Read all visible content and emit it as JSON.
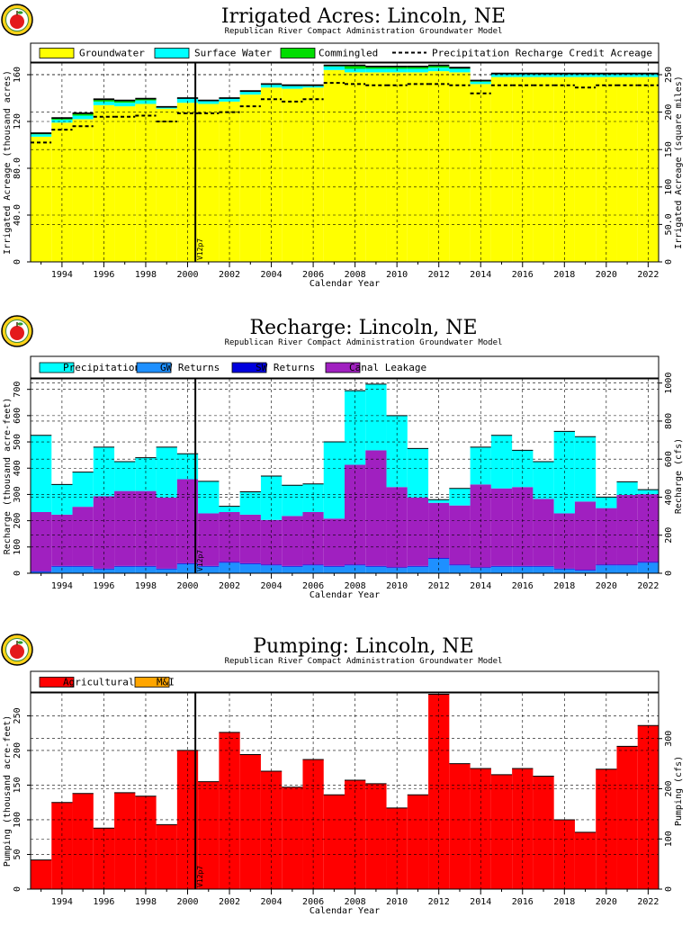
{
  "years": [
    1993,
    1994,
    1995,
    1996,
    1997,
    1998,
    1999,
    2000,
    2001,
    2002,
    2003,
    2004,
    2005,
    2006,
    2007,
    2008,
    2009,
    2010,
    2011,
    2012,
    2013,
    2014,
    2015,
    2016,
    2017,
    2018,
    2019,
    2020,
    2021,
    2022
  ],
  "x_tick_labels": [
    "1994",
    "1996",
    "1998",
    "2000",
    "2002",
    "2004",
    "2006",
    "2008",
    "2010",
    "2012",
    "2014",
    "2016",
    "2018",
    "2020",
    "2022"
  ],
  "vline_label": "V12p7",
  "vline_year": 2001,
  "colors": {
    "groundwater": "#ffff00",
    "surface_water": "#00ffff",
    "commingled": "#00dd00",
    "gw_returns": "#1e90ff",
    "sw_returns": "#0000dd",
    "canal_leakage": "#a020c0",
    "agricultural": "#ff0000",
    "mi": "#ffa500"
  },
  "chart_data": [
    {
      "type": "area",
      "title": "Irrigated Acres: Lincoln, NE",
      "subtitle": "Republican River Compact Administration Groundwater Model",
      "xlabel": "Calendar Year",
      "ylabel": "Irrigated Acreage (thousand acres)",
      "ylabel_right": "Irrigated Acreage (square miles)",
      "ylim": [
        0,
        170
      ],
      "ylim_right": [
        0,
        265.6
      ],
      "yticks": [
        "0",
        "40.0",
        "80.0",
        "120",
        "160"
      ],
      "yticks_right": [
        "0",
        "50.0",
        "100",
        "150",
        "200",
        "250"
      ],
      "legend": [
        "Groundwater",
        "Surface Water",
        "Commingled",
        "Precipitation Recharge Credit Acreage"
      ],
      "series": [
        {
          "name": "Groundwater",
          "values": [
            107,
            119,
            122,
            134,
            133,
            135,
            131,
            136,
            135,
            137,
            143,
            149,
            148,
            149,
            164,
            162,
            162,
            162,
            162,
            163,
            162,
            152,
            158,
            158,
            158,
            158,
            158,
            158,
            158,
            158
          ]
        },
        {
          "name": "Surface Water",
          "values": [
            2,
            2.5,
            3,
            3,
            3,
            3,
            1.5,
            4,
            3,
            3,
            3,
            3,
            3,
            2,
            3,
            3,
            3,
            3,
            3,
            3,
            3,
            2,
            3,
            3,
            3,
            3,
            3,
            3,
            3,
            3
          ]
        },
        {
          "name": "Commingled",
          "values": [
            1,
            1.5,
            2,
            2,
            2,
            1.5,
            0,
            0,
            0,
            0,
            0,
            0,
            0,
            0,
            1,
            3,
            2,
            2,
            2,
            2,
            1,
            1,
            0,
            0,
            0,
            0,
            0,
            0,
            0,
            0
          ]
        },
        {
          "name": "Precipitation Recharge Credit Acreage",
          "values": [
            102,
            113,
            116,
            124,
            124,
            125,
            120,
            127,
            127,
            128,
            133,
            139,
            137,
            139,
            153,
            152,
            151,
            151,
            152,
            152,
            151,
            144,
            151,
            151,
            151,
            151,
            149,
            151,
            151,
            151
          ]
        }
      ]
    },
    {
      "type": "area",
      "title": "Recharge: Lincoln, NE",
      "subtitle": "Republican River Compact Administration Groundwater Model",
      "xlabel": "Calendar Year",
      "ylabel": "Recharge (thousand acre-feet)",
      "ylabel_right": "Recharge (cfs)",
      "ylim": [
        0,
        740
      ],
      "ylim_right": [
        0,
        1022
      ],
      "yticks": [
        "0",
        "100",
        "200",
        "300",
        "400",
        "500",
        "600",
        "700"
      ],
      "yticks_right": [
        "0",
        "200",
        "400",
        "600",
        "800",
        "1000"
      ],
      "legend": [
        "Precipitation",
        "GW Returns",
        "SW Returns",
        "Canal Leakage"
      ],
      "series": [
        {
          "name": "GW Returns",
          "values": [
            5,
            25,
            25,
            15,
            25,
            25,
            15,
            35,
            25,
            40,
            35,
            30,
            25,
            30,
            25,
            30,
            25,
            20,
            25,
            55,
            30,
            20,
            25,
            25,
            25,
            15,
            10,
            30,
            30,
            40
          ]
        },
        {
          "name": "SW Returns",
          "values": [
            3,
            3,
            3,
            3,
            3,
            3,
            3,
            3,
            3,
            3,
            3,
            3,
            3,
            3,
            3,
            3,
            3,
            3,
            3,
            3,
            3,
            3,
            3,
            3,
            3,
            3,
            3,
            3,
            3,
            3
          ]
        },
        {
          "name": "Canal Leakage",
          "values": [
            225,
            195,
            225,
            275,
            285,
            285,
            270,
            320,
            200,
            190,
            185,
            170,
            190,
            200,
            180,
            380,
            440,
            305,
            260,
            210,
            225,
            315,
            295,
            300,
            255,
            210,
            260,
            215,
            265,
            258
          ]
        },
        {
          "name": "Precipitation",
          "values": [
            292,
            115,
            132,
            187,
            112,
            127,
            192,
            97,
            122,
            22,
            87,
            167,
            117,
            107,
            292,
            282,
            252,
            272,
            187,
            12,
            65,
            142,
            202,
            140,
            142,
            312,
            247,
            42,
            50,
            17
          ]
        }
      ]
    },
    {
      "type": "bar",
      "title": "Pumping: Lincoln, NE",
      "subtitle": "Republican River Compact Administration Groundwater Model",
      "xlabel": "Calendar Year",
      "ylabel": "Pumping (thousand acre-feet)",
      "ylabel_right": "Pumping (cfs)",
      "ylim": [
        0,
        283
      ],
      "ylim_right": [
        0,
        391
      ],
      "yticks": [
        "0",
        "50",
        "100",
        "150",
        "200",
        "250"
      ],
      "yticks_right": [
        "0",
        "100",
        "200",
        "300"
      ],
      "legend": [
        "Agricultural",
        "M&I"
      ],
      "series": [
        {
          "name": "Agricultural",
          "values": [
            42,
            125,
            138,
            88,
            139,
            134,
            93,
            200,
            155,
            226,
            194,
            170,
            147,
            187,
            136,
            157,
            152,
            117,
            136,
            281,
            181,
            174,
            165,
            174,
            163,
            100,
            82,
            173,
            206,
            236
          ]
        },
        {
          "name": "M&I",
          "values": [
            0,
            0,
            0,
            0,
            0,
            0,
            0,
            0,
            0,
            0,
            0,
            0,
            0,
            0,
            0,
            0,
            0,
            0,
            0,
            0,
            0,
            0,
            0,
            0,
            0,
            0,
            0,
            0,
            0,
            0
          ]
        }
      ]
    }
  ]
}
